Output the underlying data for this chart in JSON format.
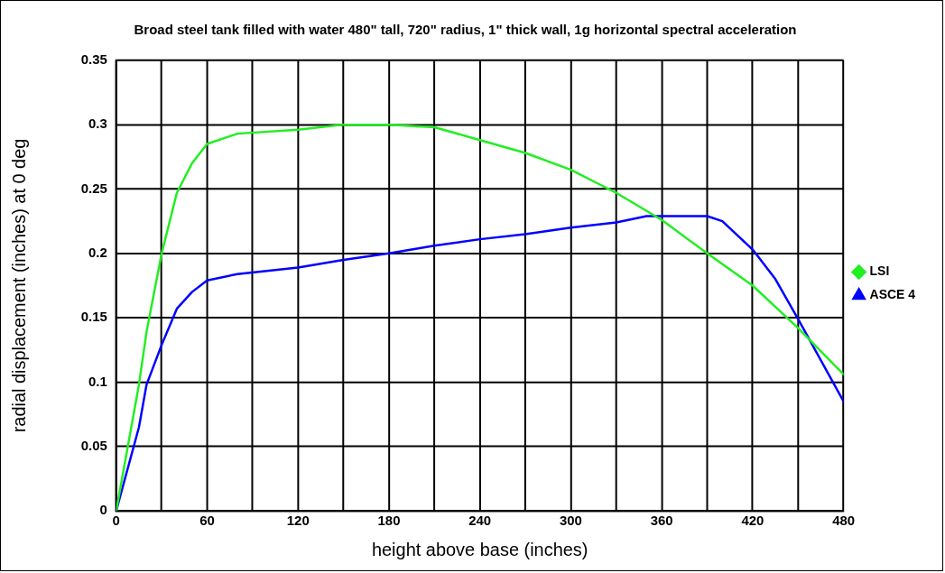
{
  "chart_data": {
    "type": "line",
    "title": "Broad steel tank filled with water 480\" tall, 720\" radius, 1\" thick wall, 1g horizontal spectral acceleration",
    "xlabel": "height above base (inches)",
    "ylabel": "radial displacement (inches) at 0 deg",
    "xlim": [
      0,
      480
    ],
    "xticks": [
      0,
      {
        "value": 30,
        "label": null
      },
      60,
      {
        "value": 90,
        "label": null
      },
      120,
      {
        "value": 150,
        "label": null
      },
      180,
      {
        "value": 210,
        "label": null
      },
      240,
      {
        "value": 270,
        "label": null
      },
      300,
      {
        "value": 330,
        "label": null
      },
      360,
      {
        "value": 390,
        "label": null
      },
      420,
      {
        "value": 450,
        "label": null
      },
      480
    ],
    "ylim": [
      0,
      0.35
    ],
    "yticks": [
      0,
      0.05,
      0.1,
      0.15,
      0.2,
      0.25,
      0.3,
      0.35
    ],
    "grid": true,
    "legend": "right",
    "marker": "none",
    "line_style": "solid",
    "series": [
      {
        "name": "LSI",
        "color": "#22ee22",
        "x": [
          0,
          15,
          20,
          30,
          40,
          50,
          60,
          80,
          120,
          150,
          180,
          210,
          240,
          270,
          300,
          330,
          360,
          390,
          420,
          450,
          480
        ],
        "values": [
          0,
          0.098,
          0.139,
          0.2,
          0.247,
          0.27,
          0.285,
          0.293,
          0.296,
          0.3,
          0.3,
          0.298,
          0.288,
          0.278,
          0.265,
          0.247,
          0.226,
          0.2,
          0.175,
          0.142,
          0.106
        ]
      },
      {
        "name": "ASCE 4",
        "color": "#0000ff",
        "x": [
          0,
          15,
          20,
          30,
          40,
          50,
          60,
          80,
          120,
          150,
          180,
          210,
          240,
          270,
          300,
          330,
          350,
          390,
          400,
          420,
          435,
          450,
          480
        ],
        "values": [
          0,
          0.065,
          0.098,
          0.129,
          0.157,
          0.17,
          0.179,
          0.184,
          0.189,
          0.195,
          0.2,
          0.206,
          0.211,
          0.215,
          0.22,
          0.224,
          0.229,
          0.229,
          0.225,
          0.203,
          0.18,
          0.149,
          0.085
        ]
      }
    ]
  }
}
